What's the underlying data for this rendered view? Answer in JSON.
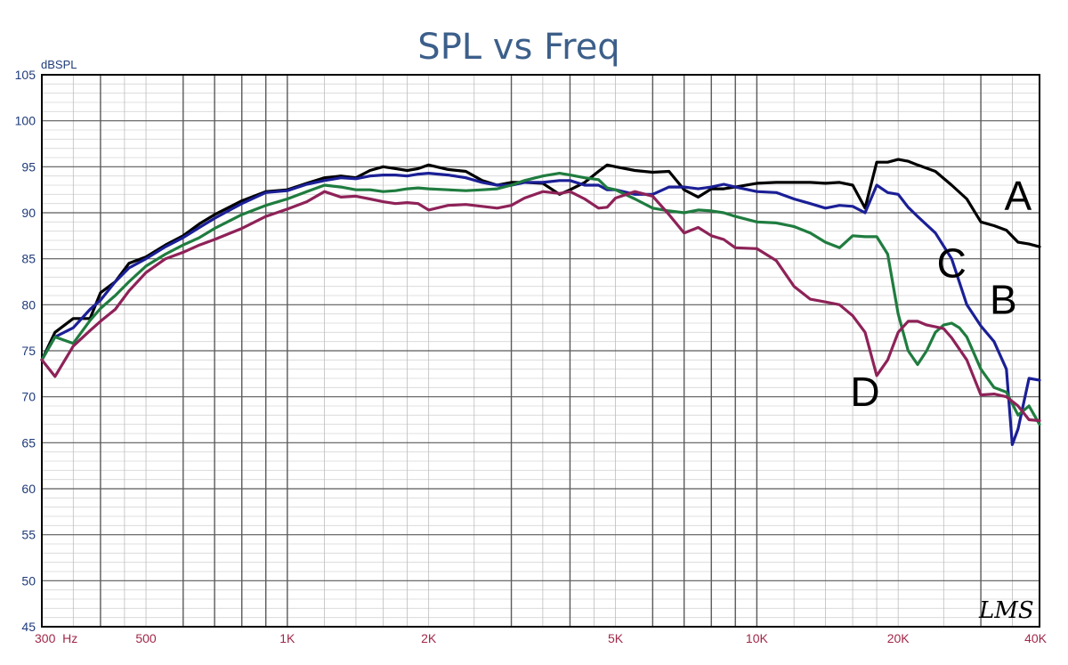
{
  "chart_data": {
    "type": "line",
    "title": "SPL vs Freq",
    "ylabel": "dBSPL",
    "xscale": "log",
    "xlim": [
      300,
      40000
    ],
    "ylim": [
      45,
      105
    ],
    "grid": true,
    "y_ticks": [
      "105",
      "100",
      "95",
      "90",
      "85",
      "80",
      "75",
      "70",
      "65",
      "60",
      "55",
      "50",
      "45"
    ],
    "x_ticks": [
      {
        "value": 300,
        "label": "300  Hz"
      },
      {
        "value": 500,
        "label": "500"
      },
      {
        "value": 1000,
        "label": "1K"
      },
      {
        "value": 2000,
        "label": "2K"
      },
      {
        "value": 5000,
        "label": "5K"
      },
      {
        "value": 10000,
        "label": "10K"
      },
      {
        "value": 20000,
        "label": "20K"
      },
      {
        "value": 40000,
        "label": "40K"
      }
    ],
    "watermark": "LMS",
    "series": [
      {
        "name": "A",
        "color": "#000000",
        "x": [
          300,
          320,
          350,
          380,
          400,
          430,
          460,
          500,
          550,
          600,
          650,
          700,
          800,
          900,
          1000,
          1100,
          1200,
          1300,
          1400,
          1500,
          1600,
          1700,
          1800,
          1900,
          2000,
          2200,
          2400,
          2600,
          2800,
          3000,
          3200,
          3500,
          3800,
          4000,
          4300,
          4600,
          4800,
          5000,
          5500,
          6000,
          6500,
          7000,
          7500,
          8000,
          8500,
          9000,
          10000,
          11000,
          12000,
          13000,
          14000,
          15000,
          16000,
          17000,
          18000,
          19000,
          20000,
          21000,
          22000,
          24000,
          26000,
          28000,
          30000,
          32000,
          34000,
          36000,
          38000,
          40000
        ],
        "y": [
          74,
          77,
          78.5,
          78.5,
          81.3,
          82.5,
          84.5,
          85.2,
          86.5,
          87.5,
          88.8,
          89.8,
          91.3,
          92.3,
          92.5,
          93.2,
          93.8,
          94,
          93.8,
          94.6,
          95,
          94.8,
          94.6,
          94.8,
          95.2,
          94.7,
          94.5,
          93.5,
          93,
          93.3,
          93.3,
          93.2,
          92,
          92.5,
          93.3,
          94.5,
          95.2,
          95,
          94.6,
          94.4,
          94.5,
          92.5,
          91.7,
          92.6,
          92.6,
          92.8,
          93.2,
          93.3,
          93.3,
          93.3,
          93.2,
          93.3,
          93,
          90.5,
          95.5,
          95.5,
          95.8,
          95.6,
          95.2,
          94.5,
          93,
          91.5,
          89,
          88.6,
          88.1,
          86.8,
          86.6,
          86.3
        ]
      },
      {
        "name": "B",
        "color": "#1b1f96",
        "x": [
          300,
          320,
          350,
          380,
          400,
          430,
          460,
          500,
          550,
          600,
          650,
          700,
          800,
          900,
          1000,
          1100,
          1200,
          1300,
          1400,
          1500,
          1600,
          1700,
          1800,
          1900,
          2000,
          2200,
          2400,
          2600,
          2800,
          3000,
          3200,
          3500,
          3800,
          4000,
          4300,
          4600,
          4800,
          5000,
          5500,
          6000,
          6500,
          7000,
          7500,
          8000,
          8500,
          9000,
          10000,
          11000,
          12000,
          13000,
          14000,
          15000,
          16000,
          17000,
          18000,
          19000,
          20000,
          21000,
          22000,
          24000,
          26000,
          28000,
          30000,
          32000,
          34000,
          35000,
          36000,
          38000,
          40000
        ],
        "y": [
          74,
          76.5,
          77.5,
          79.5,
          80.5,
          82.5,
          84,
          85,
          86.3,
          87.3,
          88.4,
          89.4,
          91,
          92.2,
          92.4,
          93.1,
          93.5,
          93.8,
          93.7,
          94,
          94.1,
          94.1,
          94,
          94.2,
          94.3,
          94.1,
          93.8,
          93.3,
          93,
          93,
          93.3,
          93.3,
          93.5,
          93.5,
          93,
          93,
          92.5,
          92.5,
          92,
          92,
          92.8,
          92.8,
          92.6,
          92.8,
          93.1,
          92.8,
          92.3,
          92.2,
          91.5,
          91,
          90.5,
          90.8,
          90.7,
          90,
          93,
          92.2,
          92,
          90.6,
          89.6,
          87.8,
          85,
          80,
          77.7,
          76,
          73,
          64.8,
          66.5,
          72,
          71.8
        ]
      },
      {
        "name": "C",
        "color": "#1f7c3f",
        "x": [
          300,
          320,
          350,
          380,
          400,
          430,
          460,
          500,
          550,
          600,
          650,
          700,
          800,
          900,
          1000,
          1100,
          1200,
          1300,
          1400,
          1500,
          1600,
          1700,
          1800,
          1900,
          2000,
          2200,
          2400,
          2600,
          2800,
          3000,
          3200,
          3500,
          3800,
          4000,
          4300,
          4600,
          4800,
          5000,
          5500,
          6000,
          6500,
          7000,
          7500,
          8000,
          8500,
          9000,
          10000,
          11000,
          12000,
          13000,
          14000,
          15000,
          16000,
          17000,
          18000,
          19000,
          20000,
          21000,
          22000,
          23000,
          24000,
          25000,
          26000,
          27000,
          28000,
          30000,
          32000,
          34000,
          36000,
          38000,
          40000
        ],
        "y": [
          74,
          76.5,
          75.8,
          78.3,
          79.6,
          81,
          82.5,
          84.2,
          85.5,
          86.5,
          87.3,
          88.3,
          89.8,
          90.8,
          91.5,
          92.3,
          93,
          92.8,
          92.5,
          92.5,
          92.3,
          92.4,
          92.6,
          92.7,
          92.6,
          92.5,
          92.4,
          92.5,
          92.6,
          93,
          93.5,
          94,
          94.3,
          94.1,
          93.8,
          93.6,
          92.7,
          92.5,
          91.5,
          90.5,
          90.2,
          90,
          90.3,
          90.2,
          90,
          89.6,
          89,
          88.9,
          88.5,
          87.8,
          86.8,
          86.2,
          87.5,
          87.4,
          87.4,
          85.5,
          79,
          75,
          73.5,
          75,
          77,
          77.8,
          78,
          77.5,
          76.5,
          73,
          71,
          70.5,
          68,
          69,
          67
        ]
      },
      {
        "name": "D",
        "color": "#8e2258",
        "x": [
          300,
          320,
          350,
          380,
          400,
          430,
          460,
          500,
          550,
          600,
          650,
          700,
          800,
          900,
          1000,
          1100,
          1200,
          1300,
          1400,
          1500,
          1600,
          1700,
          1800,
          1900,
          2000,
          2200,
          2400,
          2600,
          2800,
          3000,
          3200,
          3500,
          3800,
          4000,
          4300,
          4600,
          4800,
          5000,
          5500,
          6000,
          6500,
          7000,
          7500,
          8000,
          8500,
          9000,
          10000,
          11000,
          12000,
          13000,
          14000,
          15000,
          16000,
          17000,
          18000,
          19000,
          20000,
          21000,
          22000,
          23000,
          24000,
          25000,
          26000,
          28000,
          30000,
          32000,
          34000,
          36000,
          38000,
          40000
        ],
        "y": [
          74,
          72.2,
          75.5,
          77.2,
          78.2,
          79.5,
          81.5,
          83.5,
          85,
          85.7,
          86.5,
          87.1,
          88.3,
          89.6,
          90.4,
          91.2,
          92.3,
          91.7,
          91.8,
          91.5,
          91.2,
          91,
          91.1,
          91,
          90.3,
          90.8,
          90.9,
          90.7,
          90.5,
          90.8,
          91.6,
          92.3,
          92.1,
          92.3,
          91.5,
          90.5,
          90.6,
          91.6,
          92.3,
          91.8,
          89.8,
          87.8,
          88.4,
          87.5,
          87.1,
          86.2,
          86.1,
          84.8,
          82,
          80.6,
          80.3,
          80,
          78.8,
          77,
          72.3,
          74,
          77,
          78.2,
          78.2,
          77.8,
          77.6,
          77.4,
          76.4,
          74,
          70.2,
          70.3,
          70,
          69,
          67.5,
          67.4
        ]
      }
    ],
    "series_labels": [
      {
        "name": "A",
        "x": 36000,
        "y": 90.3
      },
      {
        "name": "B",
        "x": 33500,
        "y": 79
      },
      {
        "name": "C",
        "x": 26000,
        "y": 83
      },
      {
        "name": "D",
        "x": 17000,
        "y": 69
      }
    ]
  }
}
